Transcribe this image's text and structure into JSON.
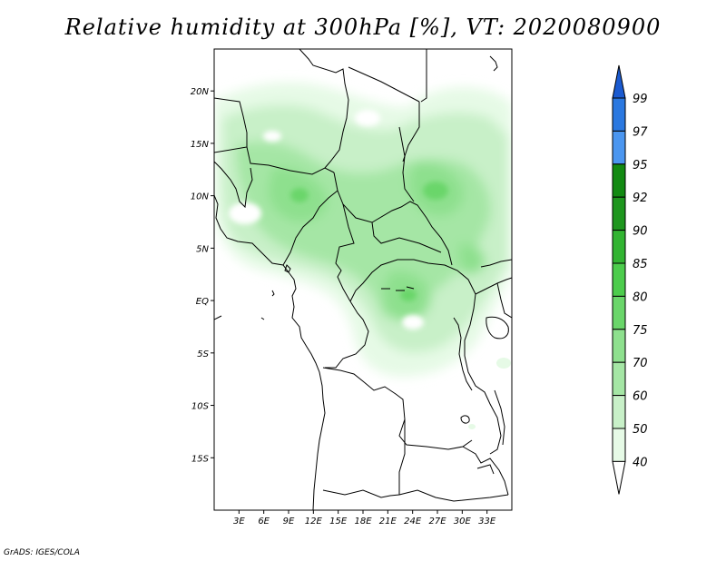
{
  "title": "Relative humidity at 300hPa [%], VT: 2020080900",
  "footer": "GrADS: IGES/COLA",
  "map": {
    "lon_range": [
      0,
      36
    ],
    "lat_range": [
      -20,
      24
    ],
    "lon_ticks": [
      "3E",
      "6E",
      "9E",
      "12E",
      "15E",
      "18E",
      "21E",
      "24E",
      "27E",
      "30E",
      "33E"
    ],
    "lat_ticks": [
      "20N",
      "15N",
      "10N",
      "5N",
      "EQ",
      "5S",
      "10S",
      "15S"
    ],
    "lon_tick_values": [
      3,
      6,
      9,
      12,
      15,
      18,
      21,
      24,
      27,
      30,
      33
    ],
    "lat_tick_values": [
      20,
      15,
      10,
      5,
      0,
      -5,
      -10,
      -15
    ]
  },
  "colorbar": {
    "unit": "%",
    "levels": [
      "40",
      "50",
      "60",
      "70",
      "75",
      "80",
      "85",
      "90",
      "92",
      "95",
      "97",
      "99"
    ],
    "colors": [
      "#ffffff",
      "#e6fae6",
      "#c8f0c8",
      "#a5e6a5",
      "#8ee08e",
      "#6ad66a",
      "#4ccc4c",
      "#32b432",
      "#1e961e",
      "#128a12",
      "#4b96f0",
      "#2a78e0",
      "#1a5ad0"
    ]
  }
}
